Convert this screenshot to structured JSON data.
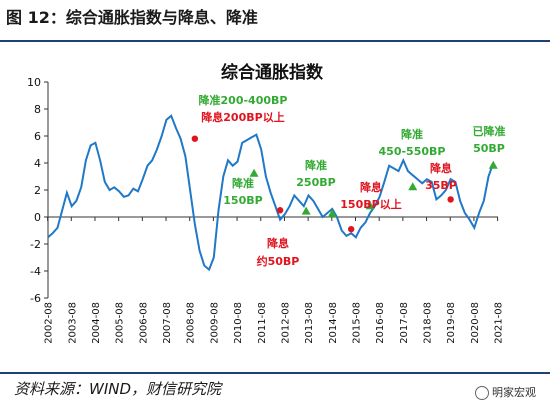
{
  "header": {
    "figure_title": "图 12：综合通胀指数与降息、降准"
  },
  "footer": {
    "source": "资料来源：WIND，财信研究院",
    "brand": "明家宏观"
  },
  "colors": {
    "line": "#1f78c8",
    "cut": "#e0141e",
    "rrr": "#33aa33",
    "rule": "#1f3f78"
  },
  "chart_data": {
    "type": "line",
    "title": "综合通胀指数",
    "xlabel": "",
    "ylabel": "",
    "ylim": [
      -6,
      10
    ],
    "yticks": [
      -6,
      -4,
      -2,
      0,
      2,
      4,
      6,
      8,
      10
    ],
    "xticks": [
      "2002-08",
      "2003-08",
      "2004-08",
      "2005-08",
      "2006-08",
      "2007-08",
      "2008-08",
      "2009-08",
      "2010-08",
      "2011-08",
      "2012-08",
      "2013-08",
      "2014-08",
      "2015-08",
      "2016-08",
      "2017-08",
      "2018-08",
      "2019-08",
      "2020-08",
      "2021-08"
    ],
    "series": [
      {
        "x": [
          2002.6,
          2002.8,
          2003.0,
          2003.2,
          2003.4,
          2003.6,
          2003.8,
          2004.0,
          2004.2,
          2004.4,
          2004.6,
          2004.8,
          2005.0,
          2005.2,
          2005.4,
          2005.6,
          2005.8,
          2006.0,
          2006.2,
          2006.4,
          2006.6,
          2006.8,
          2007.0,
          2007.2,
          2007.4,
          2007.6,
          2007.8,
          2008.0,
          2008.2,
          2008.4,
          2008.6,
          2008.8,
          2009.0,
          2009.2,
          2009.4,
          2009.6,
          2009.8,
          2010.0,
          2010.2,
          2010.4,
          2010.6,
          2010.8,
          2011.0,
          2011.2,
          2011.4,
          2011.6,
          2011.8,
          2012.0,
          2012.2,
          2012.4,
          2012.6,
          2012.8,
          2013.0,
          2013.2,
          2013.4,
          2013.6,
          2013.8,
          2014.0,
          2014.2,
          2014.4,
          2014.6,
          2014.8,
          2015.0,
          2015.2,
          2015.4,
          2015.6,
          2015.8,
          2016.0,
          2016.2,
          2016.4,
          2016.6,
          2016.8,
          2017.0,
          2017.2,
          2017.4,
          2017.6,
          2017.8,
          2018.0,
          2018.2,
          2018.4,
          2018.6,
          2018.8,
          2019.0,
          2019.2,
          2019.4,
          2019.6,
          2019.8,
          2020.0,
          2020.2,
          2020.4,
          2020.6,
          2020.8,
          2021.0,
          2021.2,
          2021.4
        ],
        "values": [
          -1.5,
          -1.2,
          -0.8,
          0.5,
          1.8,
          0.8,
          1.2,
          2.2,
          4.2,
          5.3,
          5.5,
          4.2,
          2.6,
          2.0,
          2.2,
          1.9,
          1.5,
          1.6,
          2.1,
          1.9,
          2.8,
          3.8,
          4.2,
          5.0,
          6.0,
          7.2,
          7.5,
          6.6,
          5.8,
          4.5,
          2.0,
          -0.5,
          -2.5,
          -3.6,
          -3.9,
          -3.0,
          0.5,
          3.0,
          4.2,
          3.8,
          4.1,
          5.5,
          5.7,
          5.9,
          6.1,
          5.0,
          3.0,
          1.8,
          0.8,
          -0.2,
          0.2,
          0.8,
          1.6,
          1.2,
          0.8,
          1.6,
          1.2,
          0.6,
          0.0,
          0.3,
          0.6,
          0.0,
          -1.0,
          -1.4,
          -1.2,
          -1.5,
          -0.8,
          -0.4,
          0.3,
          0.8,
          1.5,
          2.6,
          3.8,
          3.6,
          3.4,
          4.2,
          3.4,
          3.1,
          2.8,
          2.5,
          2.8,
          2.6,
          1.3,
          1.6,
          2.0,
          2.8,
          2.6,
          1.2,
          0.3,
          -0.2,
          -0.8,
          0.3,
          1.2,
          3.0,
          4.0
        ]
      }
    ],
    "red_markers": [
      {
        "x": 2008.8,
        "y": 5.8
      },
      {
        "x": 2012.4,
        "y": 0.5
      },
      {
        "x": 2015.4,
        "y": -0.9
      },
      {
        "x": 2019.6,
        "y": 1.3
      }
    ],
    "green_markers": [
      {
        "x": 2011.3,
        "y": 3.2
      },
      {
        "x": 2013.5,
        "y": 0.4
      },
      {
        "x": 2014.6,
        "y": 0.2
      },
      {
        "x": 2016.2,
        "y": 0.8
      },
      {
        "x": 2018.0,
        "y": 2.2
      },
      {
        "x": 2021.4,
        "y": 3.8
      }
    ],
    "annotations": [
      {
        "text": "降准200-400BP",
        "color": "green"
      },
      {
        "text": "降息200BP以上",
        "color": "red"
      },
      {
        "text": "降准",
        "color": "green"
      },
      {
        "text": "150BP",
        "color": "green"
      },
      {
        "text": "降息",
        "color": "red"
      },
      {
        "text": "约50BP",
        "color": "red"
      },
      {
        "text": "降准",
        "color": "green"
      },
      {
        "text": "250BP",
        "color": "green"
      },
      {
        "text": "降息",
        "color": "red"
      },
      {
        "text": "150BP以上",
        "color": "red"
      },
      {
        "text": "降准",
        "color": "green"
      },
      {
        "text": "450-550BP",
        "color": "green"
      },
      {
        "text": "降息",
        "color": "red"
      },
      {
        "text": "35BP",
        "color": "red"
      },
      {
        "text": "已降准",
        "color": "green"
      },
      {
        "text": "50BP",
        "color": "green"
      }
    ]
  }
}
